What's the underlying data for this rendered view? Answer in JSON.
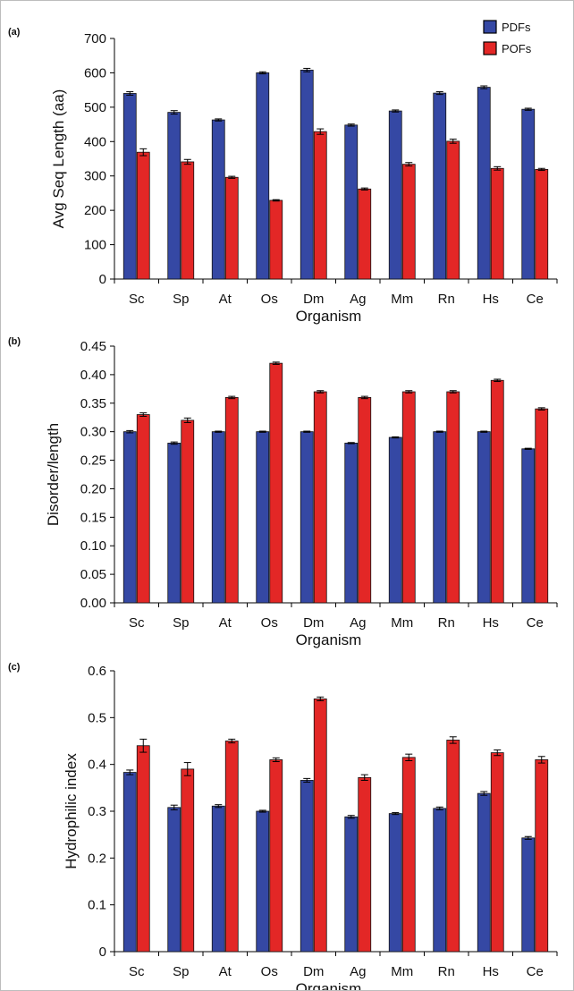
{
  "legend": [
    {
      "label": "PDFs",
      "color": "#3548a4"
    },
    {
      "label": "POFs",
      "color": "#e32726"
    }
  ],
  "chart_data": [
    {
      "type": "bar",
      "panel_label": "(a)",
      "title": "",
      "xlabel": "Organism",
      "ylabel": "Avg Seq Length (aa)",
      "ylim": [
        0,
        700
      ],
      "yticks": [
        "0",
        "100",
        "200",
        "300",
        "400",
        "500",
        "600",
        "700"
      ],
      "categories": [
        "Sc",
        "Sp",
        "At",
        "Os",
        "Dm",
        "Ag",
        "Mm",
        "Rn",
        "Hs",
        "Ce"
      ],
      "series": [
        {
          "name": "PDFs",
          "color": "#3548a4",
          "values": [
            540,
            485,
            463,
            600,
            608,
            448,
            489,
            541,
            558,
            494
          ],
          "errors": [
            5,
            5,
            3,
            3,
            5,
            3,
            3,
            4,
            4,
            3
          ]
        },
        {
          "name": "POFs",
          "color": "#e32726",
          "values": [
            369,
            341,
            296,
            229,
            429,
            262,
            334,
            401,
            322,
            319
          ],
          "errors": [
            10,
            7,
            3,
            2,
            8,
            3,
            5,
            6,
            5,
            3
          ]
        }
      ]
    },
    {
      "type": "bar",
      "panel_label": "(b)",
      "title": "",
      "xlabel": "Organism",
      "ylabel": "Disorder/length",
      "ylim": [
        0,
        0.45
      ],
      "yticks": [
        "0.00",
        "0.05",
        "0.10",
        "0.15",
        "0.20",
        "0.25",
        "0.30",
        "0.35",
        "0.40",
        "0.45"
      ],
      "categories": [
        "Sc",
        "Sp",
        "At",
        "Os",
        "Dm",
        "Ag",
        "Mm",
        "Rn",
        "Hs",
        "Ce"
      ],
      "series": [
        {
          "name": "PDFs",
          "color": "#3548a4",
          "values": [
            0.3,
            0.28,
            0.3,
            0.3,
            0.3,
            0.28,
            0.29,
            0.3,
            0.3,
            0.27
          ],
          "errors": [
            0.002,
            0.002,
            0.001,
            0.001,
            0.001,
            0.001,
            0.001,
            0.001,
            0.001,
            0.001
          ]
        },
        {
          "name": "POFs",
          "color": "#e32726",
          "values": [
            0.33,
            0.32,
            0.36,
            0.42,
            0.37,
            0.36,
            0.37,
            0.37,
            0.39,
            0.34
          ],
          "errors": [
            0.003,
            0.004,
            0.002,
            0.002,
            0.002,
            0.002,
            0.002,
            0.002,
            0.002,
            0.002
          ]
        }
      ]
    },
    {
      "type": "bar",
      "panel_label": "(c)",
      "title": "",
      "xlabel": "Organism",
      "ylabel": "Hydrophilic index",
      "ylim": [
        0,
        0.6
      ],
      "yticks": [
        "0",
        "0.1",
        "0.2",
        "0.3",
        "0.4",
        "0.5",
        "0.6"
      ],
      "categories": [
        "Sc",
        "Sp",
        "At",
        "Os",
        "Dm",
        "Ag",
        "Mm",
        "Rn",
        "Hs",
        "Ce"
      ],
      "series": [
        {
          "name": "PDFs",
          "color": "#3548a4",
          "values": [
            0.383,
            0.308,
            0.311,
            0.3,
            0.366,
            0.288,
            0.295,
            0.306,
            0.338,
            0.243
          ],
          "errors": [
            0.005,
            0.005,
            0.003,
            0.002,
            0.004,
            0.003,
            0.002,
            0.003,
            0.004,
            0.003
          ]
        },
        {
          "name": "POFs",
          "color": "#e32726",
          "values": [
            0.44,
            0.39,
            0.45,
            0.41,
            0.54,
            0.372,
            0.415,
            0.452,
            0.425,
            0.41
          ],
          "errors": [
            0.014,
            0.014,
            0.004,
            0.004,
            0.004,
            0.006,
            0.007,
            0.007,
            0.006,
            0.007
          ]
        }
      ]
    }
  ]
}
